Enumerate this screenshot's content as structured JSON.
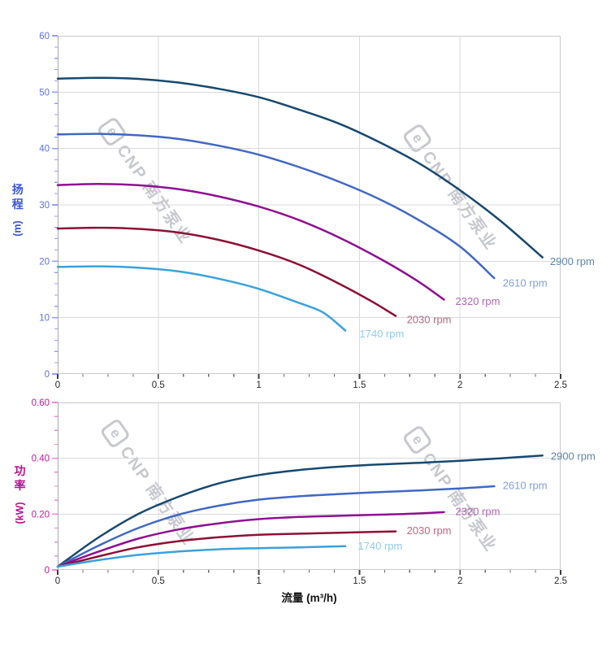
{
  "watermark": {
    "logo_char": "e",
    "text": "CNP 南方泵业"
  },
  "palette": {
    "grid": "#d9d9de",
    "border": "#c9c9d0",
    "left_spine": "#a6a6b0",
    "x_tick_major": "#3c3c44",
    "x_tick_minor": "#6b6b75",
    "x_tick_label": "#26262e",
    "head_axis": "#5f71e4",
    "head_tick": "#93a0ee",
    "power_axis": "#c2189a",
    "power_tick": "#ef86d4"
  },
  "chart_data": [
    {
      "type": "line",
      "id": "head-curves",
      "title": "",
      "xlabel": "流量 (m³/h)",
      "ylabel": "扬程",
      "ylabel_unit": "(m)",
      "xlim": [
        0,
        2.5
      ],
      "ylim": [
        0,
        60
      ],
      "x_major": 0.5,
      "x_minor": 0.125,
      "y_major": 10,
      "y_minor": 2,
      "x_tick_labels": [
        "0",
        "0.5",
        "1",
        "1.5",
        "2",
        "2.5"
      ],
      "y_tick_labels": [
        "0",
        "10",
        "20",
        "30",
        "40",
        "50",
        "60"
      ],
      "grid": true,
      "legend_position": "at-curve-ends",
      "axis_color": "#5f71e4",
      "tick_color": "#93a0ee",
      "series": [
        {
          "name": "2900 rpm",
          "color": "#17486f",
          "label_color": "#5e85ab",
          "label_at": [
            2.447,
            19.9
          ],
          "points": [
            [
              0,
              52.4
            ],
            [
              0.2,
              52.55
            ],
            [
              0.4,
              52.35
            ],
            [
              0.6,
              51.7
            ],
            [
              0.8,
              50.6
            ],
            [
              1.0,
              49.1
            ],
            [
              1.2,
              46.9
            ],
            [
              1.4,
              44.4
            ],
            [
              1.6,
              41.1
            ],
            [
              1.8,
              37.3
            ],
            [
              2.0,
              32.6
            ],
            [
              2.2,
              27.2
            ],
            [
              2.41,
              20.7
            ]
          ]
        },
        {
          "name": "2610 rpm",
          "color": "#4068c2",
          "label_color": "#7f9edd",
          "label_at": [
            2.212,
            16.1
          ],
          "points": [
            [
              0,
              42.5
            ],
            [
              0.2,
              42.6
            ],
            [
              0.4,
              42.35
            ],
            [
              0.6,
              41.7
            ],
            [
              0.8,
              40.5
            ],
            [
              1.0,
              38.9
            ],
            [
              1.2,
              36.7
            ],
            [
              1.4,
              34.1
            ],
            [
              1.6,
              31.0
            ],
            [
              1.8,
              27.2
            ],
            [
              2.0,
              22.6
            ],
            [
              2.17,
              17.0
            ]
          ]
        },
        {
          "name": "2320 rpm",
          "color": "#8f0f90",
          "label_color": "#b264b2",
          "label_at": [
            1.977,
            12.85
          ],
          "points": [
            [
              0,
              33.5
            ],
            [
              0.2,
              33.7
            ],
            [
              0.4,
              33.5
            ],
            [
              0.6,
              32.8
            ],
            [
              0.8,
              31.5
            ],
            [
              1.0,
              29.7
            ],
            [
              1.2,
              27.3
            ],
            [
              1.4,
              24.2
            ],
            [
              1.6,
              20.5
            ],
            [
              1.78,
              16.7
            ],
            [
              1.92,
              13.2
            ]
          ]
        },
        {
          "name": "2030 rpm",
          "color": "#8e0f33",
          "label_color": "#bb6782",
          "label_at": [
            1.735,
            9.6
          ],
          "points": [
            [
              0,
              25.8
            ],
            [
              0.2,
              25.95
            ],
            [
              0.4,
              25.75
            ],
            [
              0.6,
              25.1
            ],
            [
              0.8,
              23.8
            ],
            [
              1.0,
              21.9
            ],
            [
              1.2,
              19.4
            ],
            [
              1.4,
              16.0
            ],
            [
              1.56,
              12.9
            ],
            [
              1.68,
              10.3
            ]
          ]
        },
        {
          "name": "1740 rpm",
          "color": "#38a2dc",
          "label_color": "#8ecbee",
          "label_at": [
            1.5,
            7.05
          ],
          "points": [
            [
              0,
              19.0
            ],
            [
              0.2,
              19.1
            ],
            [
              0.4,
              18.85
            ],
            [
              0.6,
              18.2
            ],
            [
              0.8,
              16.9
            ],
            [
              1.0,
              15.1
            ],
            [
              1.2,
              12.6
            ],
            [
              1.32,
              10.9
            ],
            [
              1.43,
              7.7
            ]
          ]
        }
      ]
    },
    {
      "type": "line",
      "id": "power-curves",
      "title": "",
      "xlabel": "流量 (m³/h)",
      "ylabel": "功率",
      "ylabel_unit": "(kW)",
      "xlim": [
        0,
        2.5
      ],
      "ylim": [
        0,
        0.6
      ],
      "x_major": 0.5,
      "x_minor": 0.125,
      "y_major": 0.2,
      "y_minor": 0.05,
      "x_tick_labels": [
        "0",
        "0.5",
        "1",
        "1.5",
        "2",
        "2.5"
      ],
      "y_tick_labels": [
        "0",
        "0.20",
        "0.40",
        "0.60"
      ],
      "grid": true,
      "legend_position": "at-curve-ends",
      "axis_color": "#c2189a",
      "tick_color": "#ef86d4",
      "series": [
        {
          "name": "2900 rpm",
          "color": "#17486f",
          "label_color": "#5e85ab",
          "label_at": [
            2.451,
            0.407
          ],
          "points": [
            [
              0,
              0.012
            ],
            [
              0.2,
              0.115
            ],
            [
              0.4,
              0.2
            ],
            [
              0.6,
              0.262
            ],
            [
              0.8,
              0.31
            ],
            [
              1.0,
              0.34
            ],
            [
              1.2,
              0.358
            ],
            [
              1.4,
              0.37
            ],
            [
              1.6,
              0.378
            ],
            [
              1.8,
              0.384
            ],
            [
              2.0,
              0.391
            ],
            [
              2.2,
              0.4
            ],
            [
              2.41,
              0.41
            ]
          ]
        },
        {
          "name": "2610 rpm",
          "color": "#4068c2",
          "label_color": "#7f9edd",
          "label_at": [
            2.212,
            0.301
          ],
          "points": [
            [
              0,
              0.012
            ],
            [
              0.2,
              0.086
            ],
            [
              0.4,
              0.15
            ],
            [
              0.6,
              0.198
            ],
            [
              0.8,
              0.23
            ],
            [
              1.0,
              0.252
            ],
            [
              1.2,
              0.264
            ],
            [
              1.4,
              0.272
            ],
            [
              1.6,
              0.279
            ],
            [
              1.8,
              0.285
            ],
            [
              2.0,
              0.292
            ],
            [
              2.17,
              0.3
            ]
          ]
        },
        {
          "name": "2320 rpm",
          "color": "#8f0f90",
          "label_color": "#b264b2",
          "label_at": [
            1.977,
            0.208
          ],
          "points": [
            [
              0,
              0.012
            ],
            [
              0.2,
              0.065
            ],
            [
              0.4,
              0.112
            ],
            [
              0.6,
              0.145
            ],
            [
              0.8,
              0.167
            ],
            [
              1.0,
              0.182
            ],
            [
              1.2,
              0.19
            ],
            [
              1.4,
              0.194
            ],
            [
              1.6,
              0.198
            ],
            [
              1.78,
              0.202
            ],
            [
              1.92,
              0.207
            ]
          ]
        },
        {
          "name": "2030 rpm",
          "color": "#8e0f33",
          "label_color": "#bb6782",
          "label_at": [
            1.735,
            0.14
          ],
          "points": [
            [
              0,
              0.012
            ],
            [
              0.2,
              0.048
            ],
            [
              0.4,
              0.081
            ],
            [
              0.6,
              0.103
            ],
            [
              0.8,
              0.117
            ],
            [
              1.0,
              0.126
            ],
            [
              1.2,
              0.13
            ],
            [
              1.4,
              0.133
            ],
            [
              1.56,
              0.136
            ],
            [
              1.68,
              0.138
            ]
          ]
        },
        {
          "name": "1740 rpm",
          "color": "#38a2dc",
          "label_color": "#8ecbee",
          "label_at": [
            1.492,
            0.085
          ],
          "points": [
            [
              0,
              0.012
            ],
            [
              0.2,
              0.035
            ],
            [
              0.4,
              0.054
            ],
            [
              0.6,
              0.066
            ],
            [
              0.8,
              0.074
            ],
            [
              1.0,
              0.078
            ],
            [
              1.2,
              0.081
            ],
            [
              1.43,
              0.085
            ]
          ]
        }
      ]
    }
  ]
}
